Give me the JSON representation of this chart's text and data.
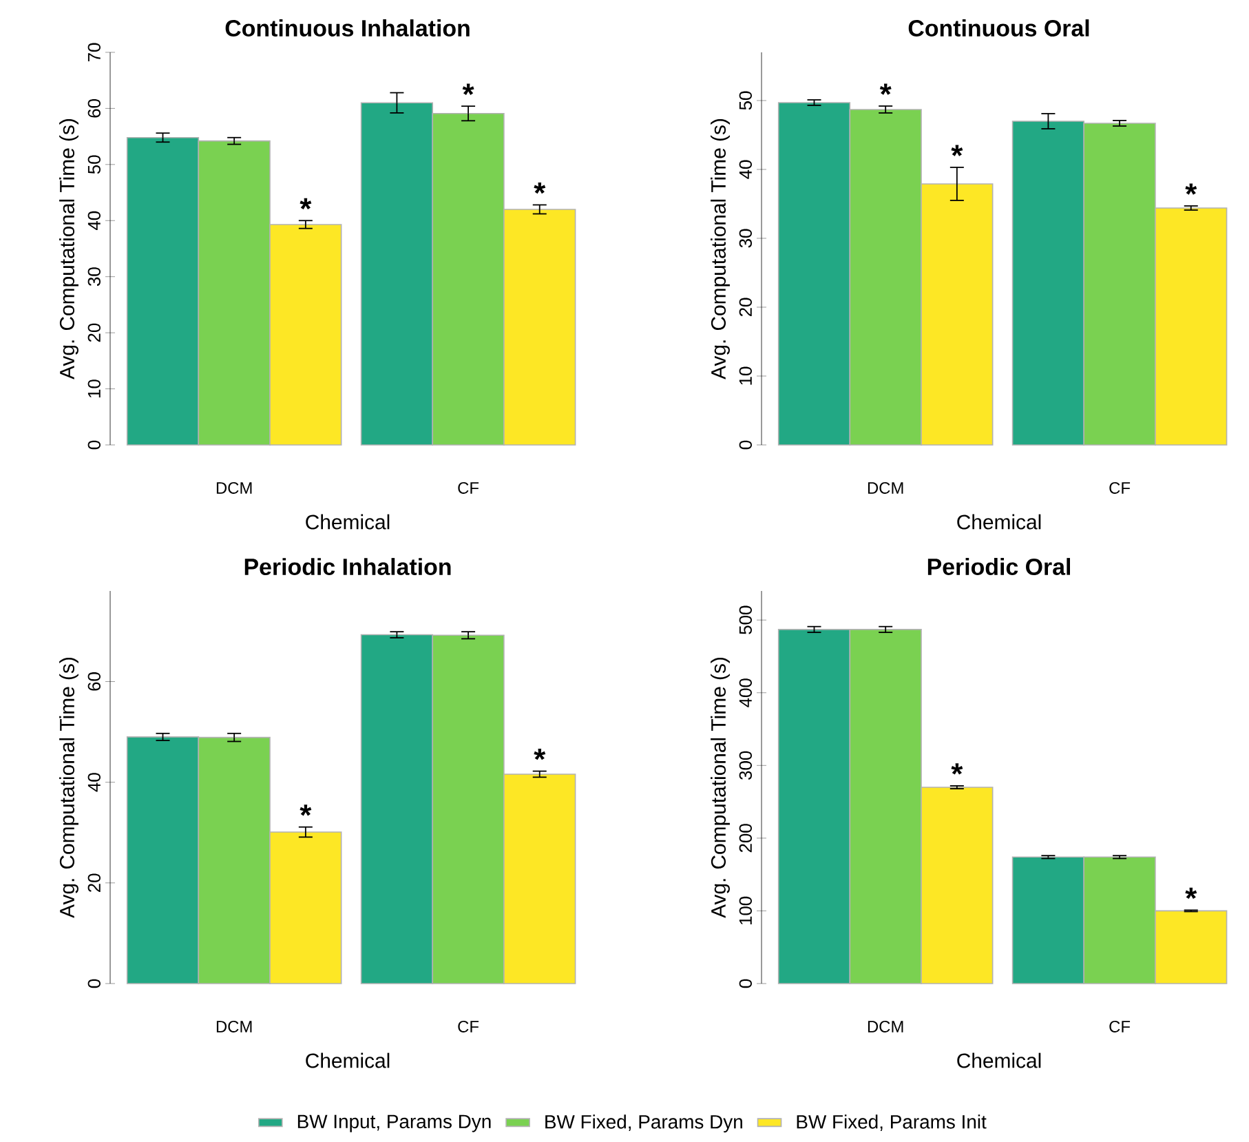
{
  "chart_data": [
    {
      "type": "bar",
      "title": "Continuous Inhalation",
      "xlabel": "Chemical",
      "ylabel": "Avg. Computational Time (s)",
      "categories": [
        "DCM",
        "CF"
      ],
      "ylim": [
        0,
        70
      ],
      "yticks": [
        0,
        10,
        20,
        30,
        40,
        50,
        60,
        70
      ],
      "series": [
        {
          "color": "#22a884",
          "values": [
            54.8,
            61.0
          ],
          "errors": [
            0.8,
            1.8
          ]
        },
        {
          "color": "#7ad151",
          "values": [
            54.2,
            59.1
          ],
          "errors": [
            0.6,
            1.3
          ],
          "value_labels": [
            null,
            "*"
          ]
        },
        {
          "color": "#fde725",
          "values": [
            39.3,
            42.0
          ],
          "errors": [
            0.7,
            0.8
          ],
          "value_labels": [
            "*",
            "*"
          ]
        }
      ]
    },
    {
      "type": "bar",
      "title": "Continuous Oral",
      "xlabel": "Chemical",
      "ylabel": "Avg. Computational Time (s)",
      "categories": [
        "DCM",
        "CF"
      ],
      "ylim": [
        0,
        57
      ],
      "yticks": [
        0,
        10,
        20,
        30,
        40,
        50
      ],
      "series": [
        {
          "color": "#22a884",
          "values": [
            49.7,
            47.0
          ],
          "errors": [
            0.4,
            1.1
          ]
        },
        {
          "color": "#7ad151",
          "values": [
            48.7,
            46.7
          ],
          "errors": [
            0.5,
            0.4
          ],
          "value_labels": [
            "*",
            null
          ]
        },
        {
          "color": "#fde725",
          "values": [
            37.9,
            34.4
          ],
          "errors": [
            2.4,
            0.3
          ],
          "value_labels": [
            "*",
            "*"
          ]
        }
      ]
    },
    {
      "type": "bar",
      "title": "Periodic Inhalation",
      "xlabel": "Chemical",
      "ylabel": "Avg. Computational Time (s)",
      "categories": [
        "DCM",
        "CF"
      ],
      "ylim": [
        0,
        78
      ],
      "yticks": [
        0,
        20,
        40,
        60
      ],
      "legend": "bottom",
      "series": [
        {
          "name": "BW Input, Params Dyn",
          "color": "#22a884",
          "values": [
            49.0,
            69.3
          ],
          "errors": [
            0.7,
            0.6
          ]
        },
        {
          "name": "BW Fixed, Params Dyn",
          "color": "#7ad151",
          "values": [
            48.9,
            69.2
          ],
          "errors": [
            0.8,
            0.7
          ]
        },
        {
          "name": "BW Fixed, Params Init",
          "color": "#fde725",
          "values": [
            30.1,
            41.6
          ],
          "errors": [
            1.0,
            0.6
          ],
          "value_labels": [
            "*",
            "*"
          ]
        }
      ]
    },
    {
      "type": "bar",
      "title": "Periodic Oral",
      "xlabel": "Chemical",
      "ylabel": "Avg. Computational Time (s)",
      "categories": [
        "DCM",
        "CF"
      ],
      "ylim": [
        0,
        540
      ],
      "yticks": [
        0,
        100,
        200,
        300,
        400,
        500
      ],
      "series": [
        {
          "color": "#22a884",
          "values": [
            487,
            174
          ],
          "errors": [
            4,
            2
          ]
        },
        {
          "color": "#7ad151",
          "values": [
            487,
            174
          ],
          "errors": [
            4,
            2
          ]
        },
        {
          "color": "#fde725",
          "values": [
            270,
            100
          ],
          "errors": [
            2,
            1
          ],
          "value_labels": [
            "*",
            "*"
          ]
        }
      ]
    }
  ]
}
